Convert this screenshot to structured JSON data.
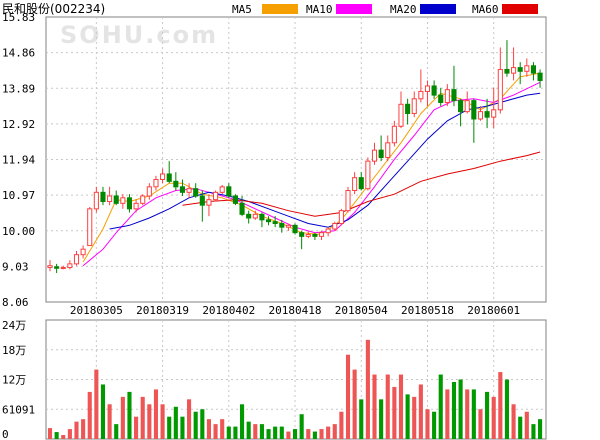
{
  "chart_data": {
    "type": "candlestick",
    "title": "民和股份(002234)",
    "watermark": "SOHU.com",
    "price_axis": {
      "ticks": [
        "15.83",
        "14.86",
        "13.89",
        "12.92",
        "11.94",
        "10.97",
        "10.00",
        "9.03",
        "8.06"
      ],
      "min": 8.06,
      "max": 15.83
    },
    "volume_axis": {
      "ticks": [
        "24万",
        "18万",
        "12万",
        "61091",
        "0"
      ],
      "max": 240000
    },
    "x_ticks": [
      {
        "label": "20180305",
        "index": 7
      },
      {
        "label": "20180319",
        "index": 17
      },
      {
        "label": "20180402",
        "index": 27
      },
      {
        "label": "20180418",
        "index": 37
      },
      {
        "label": "20180504",
        "index": 47
      },
      {
        "label": "20180518",
        "index": 57
      },
      {
        "label": "20180601",
        "index": 67
      }
    ],
    "legend": [
      {
        "name": "MA5",
        "color": "#f5a000"
      },
      {
        "name": "MA10",
        "color": "#ff00ff"
      },
      {
        "name": "MA20",
        "color": "#0000cc"
      },
      {
        "name": "MA60",
        "color": "#e00000"
      }
    ],
    "up_color": "#ff4040",
    "down_color": "#008800",
    "candles": [
      [
        9.0,
        9.05,
        8.9,
        9.2,
        22000
      ],
      [
        9.02,
        8.98,
        8.85,
        9.1,
        14000
      ],
      [
        8.98,
        9.0,
        8.95,
        9.05,
        8000
      ],
      [
        9.0,
        9.1,
        8.95,
        9.2,
        20000
      ],
      [
        9.1,
        9.35,
        9.05,
        9.45,
        35000
      ],
      [
        9.35,
        9.5,
        9.25,
        9.6,
        40000
      ],
      [
        9.6,
        10.6,
        9.6,
        10.65,
        95000
      ],
      [
        10.6,
        11.05,
        10.5,
        11.2,
        140000
      ],
      [
        11.05,
        10.8,
        10.7,
        11.2,
        110000
      ],
      [
        10.8,
        10.95,
        10.7,
        11.2,
        70000
      ],
      [
        10.95,
        10.75,
        10.7,
        11.1,
        30000
      ],
      [
        10.75,
        10.9,
        10.6,
        11.0,
        85000
      ],
      [
        10.9,
        10.6,
        10.5,
        11.0,
        95000
      ],
      [
        10.6,
        10.75,
        10.5,
        10.85,
        45000
      ],
      [
        10.75,
        10.95,
        10.7,
        11.0,
        85000
      ],
      [
        10.95,
        11.2,
        10.85,
        11.3,
        70000
      ],
      [
        11.2,
        11.4,
        11.1,
        11.5,
        100000
      ],
      [
        11.4,
        11.55,
        11.3,
        11.7,
        70000
      ],
      [
        11.55,
        11.35,
        11.3,
        11.9,
        45000
      ],
      [
        11.35,
        11.2,
        11.1,
        11.6,
        65000
      ],
      [
        11.2,
        11.05,
        10.95,
        11.4,
        45000
      ],
      [
        11.05,
        11.15,
        10.9,
        11.3,
        80000
      ],
      [
        11.15,
        10.95,
        10.9,
        11.3,
        55000
      ],
      [
        10.95,
        10.7,
        10.25,
        11.1,
        60000
      ],
      [
        10.7,
        10.85,
        10.4,
        11.0,
        40000
      ],
      [
        10.85,
        11.05,
        10.8,
        11.1,
        30000
      ],
      [
        11.05,
        11.2,
        11.0,
        11.25,
        40000
      ],
      [
        11.2,
        10.95,
        10.9,
        11.3,
        25000
      ],
      [
        10.95,
        10.75,
        10.7,
        11.0,
        25000
      ],
      [
        10.75,
        10.45,
        10.4,
        10.95,
        70000
      ],
      [
        10.45,
        10.35,
        10.2,
        10.55,
        35000
      ],
      [
        10.35,
        10.45,
        10.3,
        10.55,
        30000
      ],
      [
        10.45,
        10.3,
        10.1,
        10.5,
        30000
      ],
      [
        10.3,
        10.25,
        10.15,
        10.4,
        20000
      ],
      [
        10.25,
        10.2,
        10.1,
        10.4,
        25000
      ],
      [
        10.2,
        10.1,
        9.95,
        10.3,
        25000
      ],
      [
        10.1,
        10.15,
        10.0,
        10.2,
        15000
      ],
      [
        10.15,
        9.95,
        9.9,
        10.2,
        20000
      ],
      [
        9.95,
        9.85,
        9.5,
        10.0,
        50000
      ],
      [
        9.85,
        9.9,
        9.8,
        10.0,
        20000
      ],
      [
        9.9,
        9.85,
        9.75,
        9.95,
        15000
      ],
      [
        9.85,
        9.95,
        9.75,
        10.0,
        20000
      ],
      [
        9.95,
        10.05,
        9.85,
        10.1,
        25000
      ],
      [
        10.05,
        10.2,
        10.0,
        10.25,
        30000
      ],
      [
        10.2,
        10.55,
        10.15,
        10.6,
        55000
      ],
      [
        10.55,
        11.1,
        10.5,
        11.2,
        170000
      ],
      [
        11.1,
        11.45,
        11.0,
        11.6,
        140000
      ],
      [
        11.45,
        11.15,
        11.1,
        11.6,
        80000
      ],
      [
        11.15,
        11.9,
        11.1,
        12.0,
        200000
      ],
      [
        11.9,
        12.2,
        11.8,
        12.4,
        130000
      ],
      [
        12.2,
        12.0,
        11.9,
        12.6,
        80000
      ],
      [
        12.0,
        12.4,
        11.9,
        12.6,
        130000
      ],
      [
        12.4,
        12.85,
        12.3,
        13.0,
        105000
      ],
      [
        12.85,
        13.45,
        12.8,
        13.8,
        130000
      ],
      [
        13.45,
        13.2,
        12.9,
        13.6,
        90000
      ],
      [
        13.2,
        13.6,
        13.1,
        13.8,
        85000
      ],
      [
        13.6,
        13.8,
        13.5,
        14.4,
        110000
      ],
      [
        13.8,
        13.95,
        13.4,
        14.1,
        60000
      ],
      [
        13.95,
        13.7,
        13.6,
        14.1,
        55000
      ],
      [
        13.7,
        13.5,
        13.4,
        13.9,
        130000
      ],
      [
        13.5,
        13.85,
        13.4,
        14.0,
        100000
      ],
      [
        13.85,
        13.55,
        13.4,
        14.5,
        115000
      ],
      [
        13.55,
        13.25,
        12.85,
        13.6,
        120000
      ],
      [
        13.25,
        13.55,
        13.2,
        13.8,
        100000
      ],
      [
        13.55,
        13.05,
        12.4,
        13.6,
        100000
      ],
      [
        13.05,
        13.25,
        13.0,
        13.4,
        60000
      ],
      [
        13.25,
        13.1,
        12.8,
        13.6,
        95000
      ],
      [
        13.1,
        13.3,
        12.8,
        13.9,
        85000
      ],
      [
        13.3,
        14.4,
        13.2,
        15.0,
        135000
      ],
      [
        14.4,
        14.3,
        14.2,
        15.2,
        120000
      ],
      [
        14.3,
        14.45,
        14.1,
        15.0,
        70000
      ],
      [
        14.45,
        14.35,
        14.0,
        14.6,
        45000
      ],
      [
        14.35,
        14.5,
        14.2,
        14.7,
        55000
      ],
      [
        14.5,
        14.3,
        14.1,
        14.6,
        30000
      ],
      [
        14.3,
        14.1,
        13.9,
        14.4,
        40000
      ]
    ],
    "ma": {
      "MA5": [
        [
          5,
          9.15
        ],
        [
          8,
          10.05
        ],
        [
          10,
          10.85
        ],
        [
          12,
          10.8
        ],
        [
          15,
          10.95
        ],
        [
          18,
          11.3
        ],
        [
          20,
          11.3
        ],
        [
          23,
          11.0
        ],
        [
          26,
          10.9
        ],
        [
          29,
          10.7
        ],
        [
          32,
          10.4
        ],
        [
          35,
          10.2
        ],
        [
          38,
          9.95
        ],
        [
          41,
          9.9
        ],
        [
          44,
          10.3
        ],
        [
          47,
          11.0
        ],
        [
          50,
          11.7
        ],
        [
          53,
          12.4
        ],
        [
          56,
          13.2
        ],
        [
          59,
          13.75
        ],
        [
          62,
          13.6
        ],
        [
          65,
          13.3
        ],
        [
          68,
          13.6
        ],
        [
          71,
          14.2
        ],
        [
          74,
          14.3
        ]
      ],
      "MA10": [
        [
          5,
          9.05
        ],
        [
          8,
          9.5
        ],
        [
          10,
          9.95
        ],
        [
          13,
          10.55
        ],
        [
          16,
          10.9
        ],
        [
          19,
          11.1
        ],
        [
          22,
          11.15
        ],
        [
          25,
          11.0
        ],
        [
          28,
          10.85
        ],
        [
          31,
          10.6
        ],
        [
          34,
          10.35
        ],
        [
          37,
          10.1
        ],
        [
          40,
          9.95
        ],
        [
          43,
          10.0
        ],
        [
          46,
          10.5
        ],
        [
          49,
          11.2
        ],
        [
          52,
          11.95
        ],
        [
          55,
          12.6
        ],
        [
          58,
          13.3
        ],
        [
          61,
          13.55
        ],
        [
          64,
          13.6
        ],
        [
          67,
          13.5
        ],
        [
          70,
          13.7
        ],
        [
          74,
          14.05
        ]
      ],
      "MA20": [
        [
          9,
          10.05
        ],
        [
          12,
          10.15
        ],
        [
          15,
          10.35
        ],
        [
          18,
          10.6
        ],
        [
          21,
          10.9
        ],
        [
          24,
          11.05
        ],
        [
          27,
          10.95
        ],
        [
          30,
          10.8
        ],
        [
          33,
          10.6
        ],
        [
          36,
          10.4
        ],
        [
          39,
          10.2
        ],
        [
          42,
          10.1
        ],
        [
          45,
          10.3
        ],
        [
          48,
          10.7
        ],
        [
          51,
          11.3
        ],
        [
          54,
          11.9
        ],
        [
          57,
          12.5
        ],
        [
          60,
          13.0
        ],
        [
          63,
          13.3
        ],
        [
          66,
          13.4
        ],
        [
          69,
          13.55
        ],
        [
          72,
          13.7
        ],
        [
          74,
          13.75
        ]
      ],
      "MA60": [
        [
          20,
          10.7
        ],
        [
          24,
          10.8
        ],
        [
          28,
          10.85
        ],
        [
          32,
          10.75
        ],
        [
          36,
          10.55
        ],
        [
          40,
          10.4
        ],
        [
          44,
          10.5
        ],
        [
          48,
          10.8
        ],
        [
          52,
          11.0
        ],
        [
          56,
          11.35
        ],
        [
          60,
          11.55
        ],
        [
          64,
          11.7
        ],
        [
          68,
          11.9
        ],
        [
          72,
          12.05
        ],
        [
          74,
          12.15
        ]
      ]
    }
  }
}
